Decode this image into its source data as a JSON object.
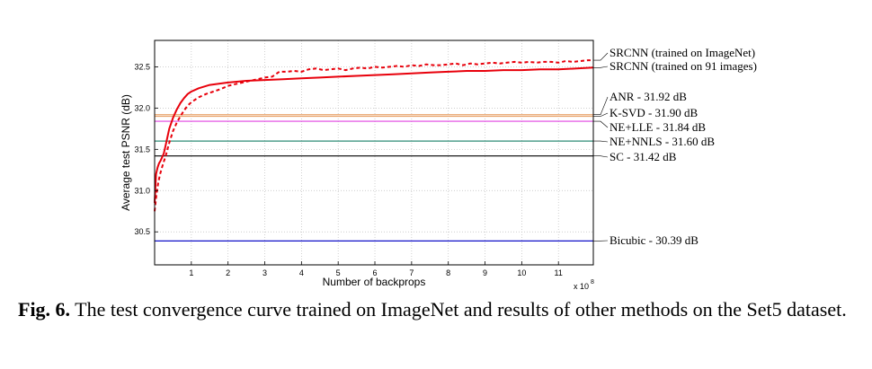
{
  "caption": {
    "label": "Fig. 6.",
    "text": "The test convergence curve trained on ImageNet and results of other methods on the Set5 dataset."
  },
  "chart_data": {
    "type": "line",
    "title": "",
    "xlabel": "Number of backprops",
    "ylabel": "Average test PSNR (dB)",
    "x_multiplier": "x 10^8",
    "xlim": [
      0,
      11.95
    ],
    "ylim": [
      30.1,
      32.82
    ],
    "xticks": [
      "1",
      "2",
      "3",
      "4",
      "5",
      "6",
      "7",
      "8",
      "9",
      "10",
      "11"
    ],
    "yticks": [
      "30.5",
      "31.0",
      "31.5",
      "32.0",
      "32.5"
    ],
    "grid": true,
    "series": [
      {
        "name": "SRCNN (trained on ImageNet)",
        "color": "#e8000b",
        "style": "dashed",
        "x": [
          0,
          0.05,
          0.1,
          0.15,
          0.2,
          0.25,
          0.3,
          0.35,
          0.4,
          0.5,
          0.6,
          0.7,
          0.8,
          0.9,
          1.0,
          1.2,
          1.4,
          1.6,
          1.8,
          2.0,
          2.2,
          2.4,
          2.6,
          2.8,
          3.0,
          3.2,
          3.4,
          3.6,
          3.8,
          4.0,
          4.2,
          4.4,
          4.6,
          4.8,
          5.0,
          5.2,
          5.4,
          5.6,
          5.8,
          6.0,
          6.2,
          6.4,
          6.6,
          6.8,
          7.0,
          7.2,
          7.4,
          7.6,
          7.8,
          8.0,
          8.2,
          8.4,
          8.6,
          8.8,
          9.0,
          9.2,
          9.4,
          9.6,
          9.8,
          10.0,
          10.2,
          10.4,
          10.6,
          10.8,
          11.0,
          11.2,
          11.4,
          11.6,
          11.8,
          11.95
        ],
        "y": [
          30.75,
          30.95,
          31.1,
          31.2,
          31.28,
          31.35,
          31.42,
          31.5,
          31.58,
          31.72,
          31.82,
          31.9,
          31.97,
          32.03,
          32.07,
          32.13,
          32.17,
          32.2,
          32.23,
          32.27,
          32.29,
          32.31,
          32.33,
          32.35,
          32.37,
          32.38,
          32.44,
          32.44,
          32.45,
          32.44,
          32.47,
          32.48,
          32.46,
          32.47,
          32.48,
          32.46,
          32.48,
          32.49,
          32.48,
          32.5,
          32.49,
          32.5,
          32.51,
          32.5,
          32.52,
          32.51,
          32.53,
          32.52,
          32.52,
          32.53,
          32.54,
          32.52,
          32.54,
          32.53,
          32.54,
          32.55,
          32.54,
          32.55,
          32.56,
          32.55,
          32.56,
          32.55,
          32.56,
          32.56,
          32.55,
          32.57,
          32.56,
          32.57,
          32.58,
          32.58
        ]
      },
      {
        "name": "SRCNN (trained on 91 images)",
        "color": "#e8000b",
        "style": "solid",
        "x": [
          0,
          0.04,
          0.08,
          0.12,
          0.16,
          0.2,
          0.25,
          0.3,
          0.35,
          0.4,
          0.5,
          0.6,
          0.7,
          0.8,
          0.9,
          1.0,
          1.2,
          1.5,
          2.0,
          2.5,
          3.0,
          3.5,
          4.0,
          4.5,
          5.0,
          5.5,
          6.0,
          6.5,
          7.0,
          7.5,
          8.0,
          8.5,
          9.0,
          9.5,
          10.0,
          10.5,
          11.0,
          11.5,
          11.95
        ],
        "y": [
          30.85,
          31.2,
          31.28,
          31.33,
          31.36,
          31.4,
          31.45,
          31.55,
          31.65,
          31.75,
          31.88,
          31.98,
          32.06,
          32.12,
          32.17,
          32.2,
          32.24,
          32.28,
          32.31,
          32.33,
          32.34,
          32.35,
          32.36,
          32.37,
          32.38,
          32.39,
          32.4,
          32.41,
          32.42,
          32.43,
          32.44,
          32.45,
          32.45,
          32.46,
          32.46,
          32.47,
          32.47,
          32.48,
          32.49
        ]
      }
    ],
    "reference_lines": [
      {
        "label": "ANR - 31.92 dB",
        "value": 31.92,
        "color": "#e8a26a"
      },
      {
        "label": "K-SVD - 31.90 dB",
        "value": 31.9,
        "color": "#e8a26a"
      },
      {
        "label": "NE+LLE - 31.84 dB",
        "value": 31.84,
        "color": "#e040e0"
      },
      {
        "label": "NE+NNLS - 31.60 dB",
        "value": 31.6,
        "color": "#2e8b75"
      },
      {
        "label": "SC - 31.42 dB",
        "value": 31.42,
        "color": "#000000"
      },
      {
        "label": "Bicubic - 30.39 dB",
        "value": 30.39,
        "color": "#1010c8"
      }
    ]
  }
}
